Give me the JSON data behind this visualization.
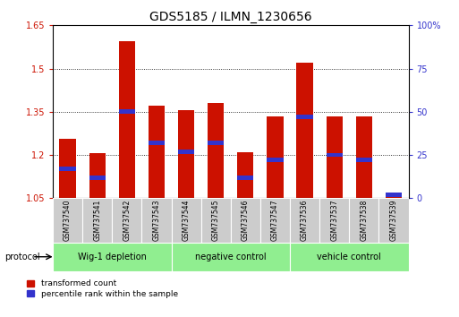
{
  "title": "GDS5185 / ILMN_1230656",
  "samples": [
    "GSM737540",
    "GSM737541",
    "GSM737542",
    "GSM737543",
    "GSM737544",
    "GSM737545",
    "GSM737546",
    "GSM737547",
    "GSM737536",
    "GSM737537",
    "GSM737538",
    "GSM737539"
  ],
  "red_values": [
    1.255,
    1.205,
    1.595,
    1.37,
    1.355,
    1.38,
    1.21,
    1.335,
    1.52,
    1.335,
    1.335,
    1.057
  ],
  "blue_pct": [
    17,
    12,
    50,
    32,
    27,
    32,
    12,
    22,
    47,
    25,
    22,
    2
  ],
  "base": 1.05,
  "ylim_left": [
    1.05,
    1.65
  ],
  "ylim_right": [
    0,
    100
  ],
  "yticks_left": [
    1.05,
    1.2,
    1.35,
    1.5,
    1.65
  ],
  "yticks_left_labels": [
    "1.05",
    "1.2",
    "1.35",
    "1.5",
    "1.65"
  ],
  "yticks_right": [
    0,
    25,
    50,
    75,
    100
  ],
  "yticks_right_labels": [
    "0",
    "25",
    "50",
    "75",
    "100%"
  ],
  "groups": [
    {
      "label": "Wig-1 depletion",
      "start": 0,
      "end": 3
    },
    {
      "label": "negative control",
      "start": 4,
      "end": 7
    },
    {
      "label": "vehicle control",
      "start": 8,
      "end": 11
    }
  ],
  "group_color": "#90EE90",
  "bar_color_red": "#CC1100",
  "bar_color_blue": "#3333CC",
  "bar_width": 0.55,
  "sample_bg_color": "#CCCCCC",
  "protocol_label": "protocol",
  "legend_red": "transformed count",
  "legend_blue": "percentile rank within the sample",
  "title_fontsize": 10,
  "tick_fontsize": 7,
  "label_fontsize": 7
}
